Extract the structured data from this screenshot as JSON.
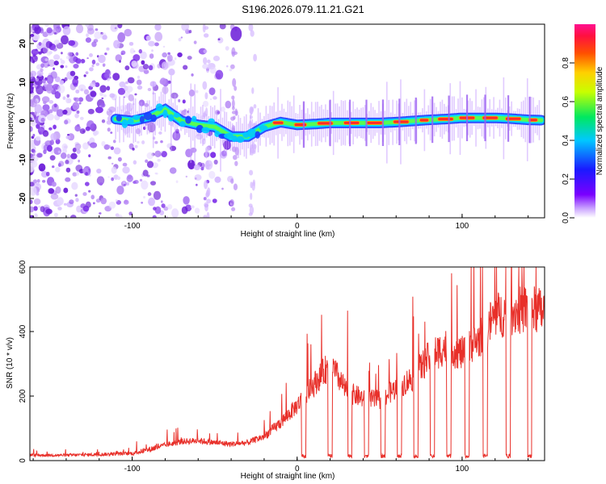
{
  "title": "S196.2026.079.11.21.G21",
  "colors": {
    "snr_line": "#e8302a",
    "trace_core": "#ff2a2a",
    "trace_mid": "#00e0ff",
    "trace_outer": "#1a3cff",
    "scatter": "#8a2be2"
  },
  "chart_data": [
    {
      "type": "heatmap",
      "name": "spectrogram",
      "title": "S196.2026.079.11.21.G21",
      "xlabel": "Height of straight line (km)",
      "ylabel": "Frequency (Hz)",
      "xlim": [
        -162,
        150
      ],
      "ylim": [
        -25,
        25
      ],
      "x_ticks": [
        -100,
        0,
        100
      ],
      "y_ticks": [
        20,
        10,
        0,
        -10,
        -20
      ],
      "colorbar": {
        "label": "Normalized spectral amplitude",
        "range": [
          0.0,
          1.0
        ],
        "ticks": [
          0.0,
          0.2,
          0.4,
          0.6,
          0.8
        ]
      },
      "ridge": {
        "x": [
          -110,
          -100,
          -90,
          -80,
          -70,
          -60,
          -50,
          -40,
          -30,
          -20,
          -10,
          0,
          10,
          20,
          30,
          40,
          50,
          60,
          70,
          80,
          90,
          100,
          110,
          120,
          130,
          140,
          148
        ],
        "frequency": [
          0.5,
          0,
          1,
          3,
          0,
          -1,
          -1.5,
          -4,
          -4,
          -1.5,
          -0.3,
          -1,
          -0.8,
          -0.5,
          -0.5,
          -0.5,
          -0.5,
          -0.3,
          0,
          0.3,
          0.5,
          0.8,
          0.8,
          0.8,
          0.6,
          0.3,
          0.2
        ],
        "amplitude": [
          0.35,
          0.35,
          0.4,
          0.45,
          0.45,
          0.4,
          0.4,
          0.5,
          0.6,
          0.7,
          0.75,
          0.85,
          0.9,
          0.9,
          0.92,
          0.95,
          0.95,
          0.95,
          0.9,
          0.9,
          0.92,
          0.95,
          0.95,
          0.95,
          0.9,
          0.9,
          0.85
        ]
      },
      "noise_region_x": [
        -162,
        -40
      ]
    },
    {
      "type": "line",
      "name": "snr",
      "title": "",
      "xlabel": "Height of straight line (km)",
      "ylabel": "SNR (10 * v/v)",
      "xlim": [
        -162,
        150
      ],
      "ylim": [
        0,
        600
      ],
      "x_ticks": [
        -100,
        0,
        100
      ],
      "y_ticks": [
        0,
        200,
        400,
        600
      ],
      "baseline": {
        "x": [
          -162,
          -140,
          -120,
          -100,
          -90,
          -80,
          -70,
          -60,
          -50,
          -40,
          -30,
          -20,
          -10,
          0,
          10,
          20,
          30,
          40,
          50,
          60,
          70,
          80,
          90,
          100,
          110,
          120,
          130,
          140,
          150
        ],
        "snr": [
          15,
          15,
          17,
          20,
          30,
          45,
          55,
          58,
          52,
          48,
          52,
          70,
          110,
          160,
          220,
          280,
          200,
          180,
          175,
          210,
          240,
          300,
          330,
          310,
          350,
          420,
          430,
          440,
          430
        ]
      },
      "dropouts_x": [
        4,
        20,
        32,
        42,
        52,
        62,
        72,
        82,
        92,
        103,
        114,
        128,
        141
      ],
      "peak_snr": 600
    }
  ]
}
